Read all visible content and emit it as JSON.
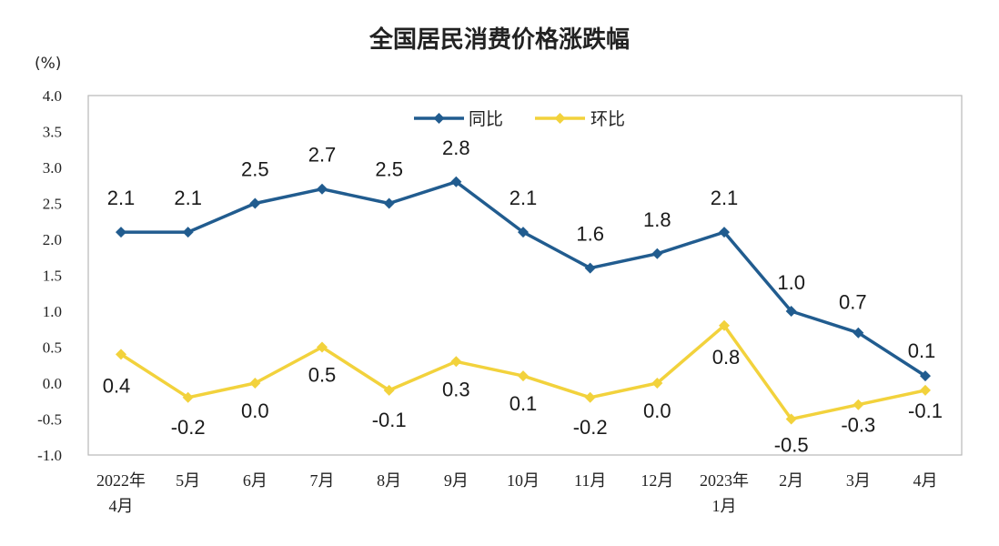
{
  "chart_data": {
    "type": "line",
    "title": "全国居民消费价格涨跌幅",
    "unit_label": "(%)",
    "categories": [
      "2022年\n4月",
      "5月",
      "6月",
      "7月",
      "8月",
      "9月",
      "10月",
      "11月",
      "12月",
      "2023年\n1月",
      "2月",
      "3月",
      "4月"
    ],
    "series": [
      {
        "name": "同比",
        "color": "#215c8f",
        "values": [
          2.1,
          2.1,
          2.5,
          2.7,
          2.5,
          2.8,
          2.1,
          1.6,
          1.8,
          2.1,
          1.0,
          0.7,
          0.1
        ],
        "labels": [
          "2.1",
          "2.1",
          "2.5",
          "2.7",
          "2.5",
          "2.8",
          "2.1",
          "1.6",
          "1.8",
          "2.1",
          "1.0",
          "0.7",
          "0.1"
        ]
      },
      {
        "name": "环比",
        "color": "#f2d23c",
        "values": [
          0.4,
          -0.2,
          0.0,
          0.5,
          -0.1,
          0.3,
          0.1,
          -0.2,
          0.0,
          0.8,
          -0.5,
          -0.3,
          -0.1
        ],
        "labels": [
          "0.4",
          "-0.2",
          "0.0",
          "0.5",
          "-0.1",
          "0.3",
          "0.1",
          "-0.2",
          "0.0",
          "0.8",
          "-0.5",
          "-0.3",
          "-0.1"
        ]
      }
    ],
    "ylim": [
      -1.0,
      4.0
    ],
    "yticks": [
      "4.0",
      "3.5",
      "3.0",
      "2.5",
      "2.0",
      "1.5",
      "1.0",
      "0.5",
      "0.0",
      "-0.5",
      "-1.0"
    ],
    "ytick_values": [
      4.0,
      3.5,
      3.0,
      2.5,
      2.0,
      1.5,
      1.0,
      0.5,
      0.0,
      -0.5,
      -1.0
    ],
    "grid": false,
    "legend_position": "top-center"
  }
}
